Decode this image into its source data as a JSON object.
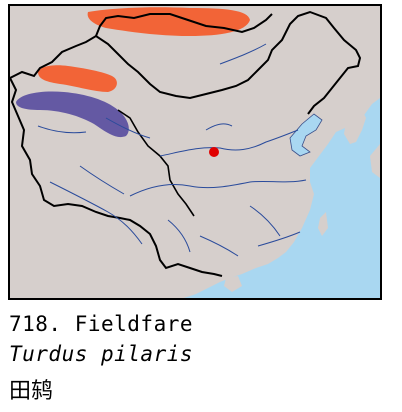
{
  "caption": {
    "number_name": "718. Fieldfare",
    "scientific_name": "Turdus pilaris",
    "chinese_name": "田鸫"
  },
  "legend_colors": {
    "breeding_range": "#f26437",
    "wintering_range": "#5a4fa0",
    "record_point": "#e00000",
    "land": "#d6cfcc",
    "sea": "#a9d7f1",
    "border": "#000000",
    "rivers": "#2a4b9b"
  }
}
